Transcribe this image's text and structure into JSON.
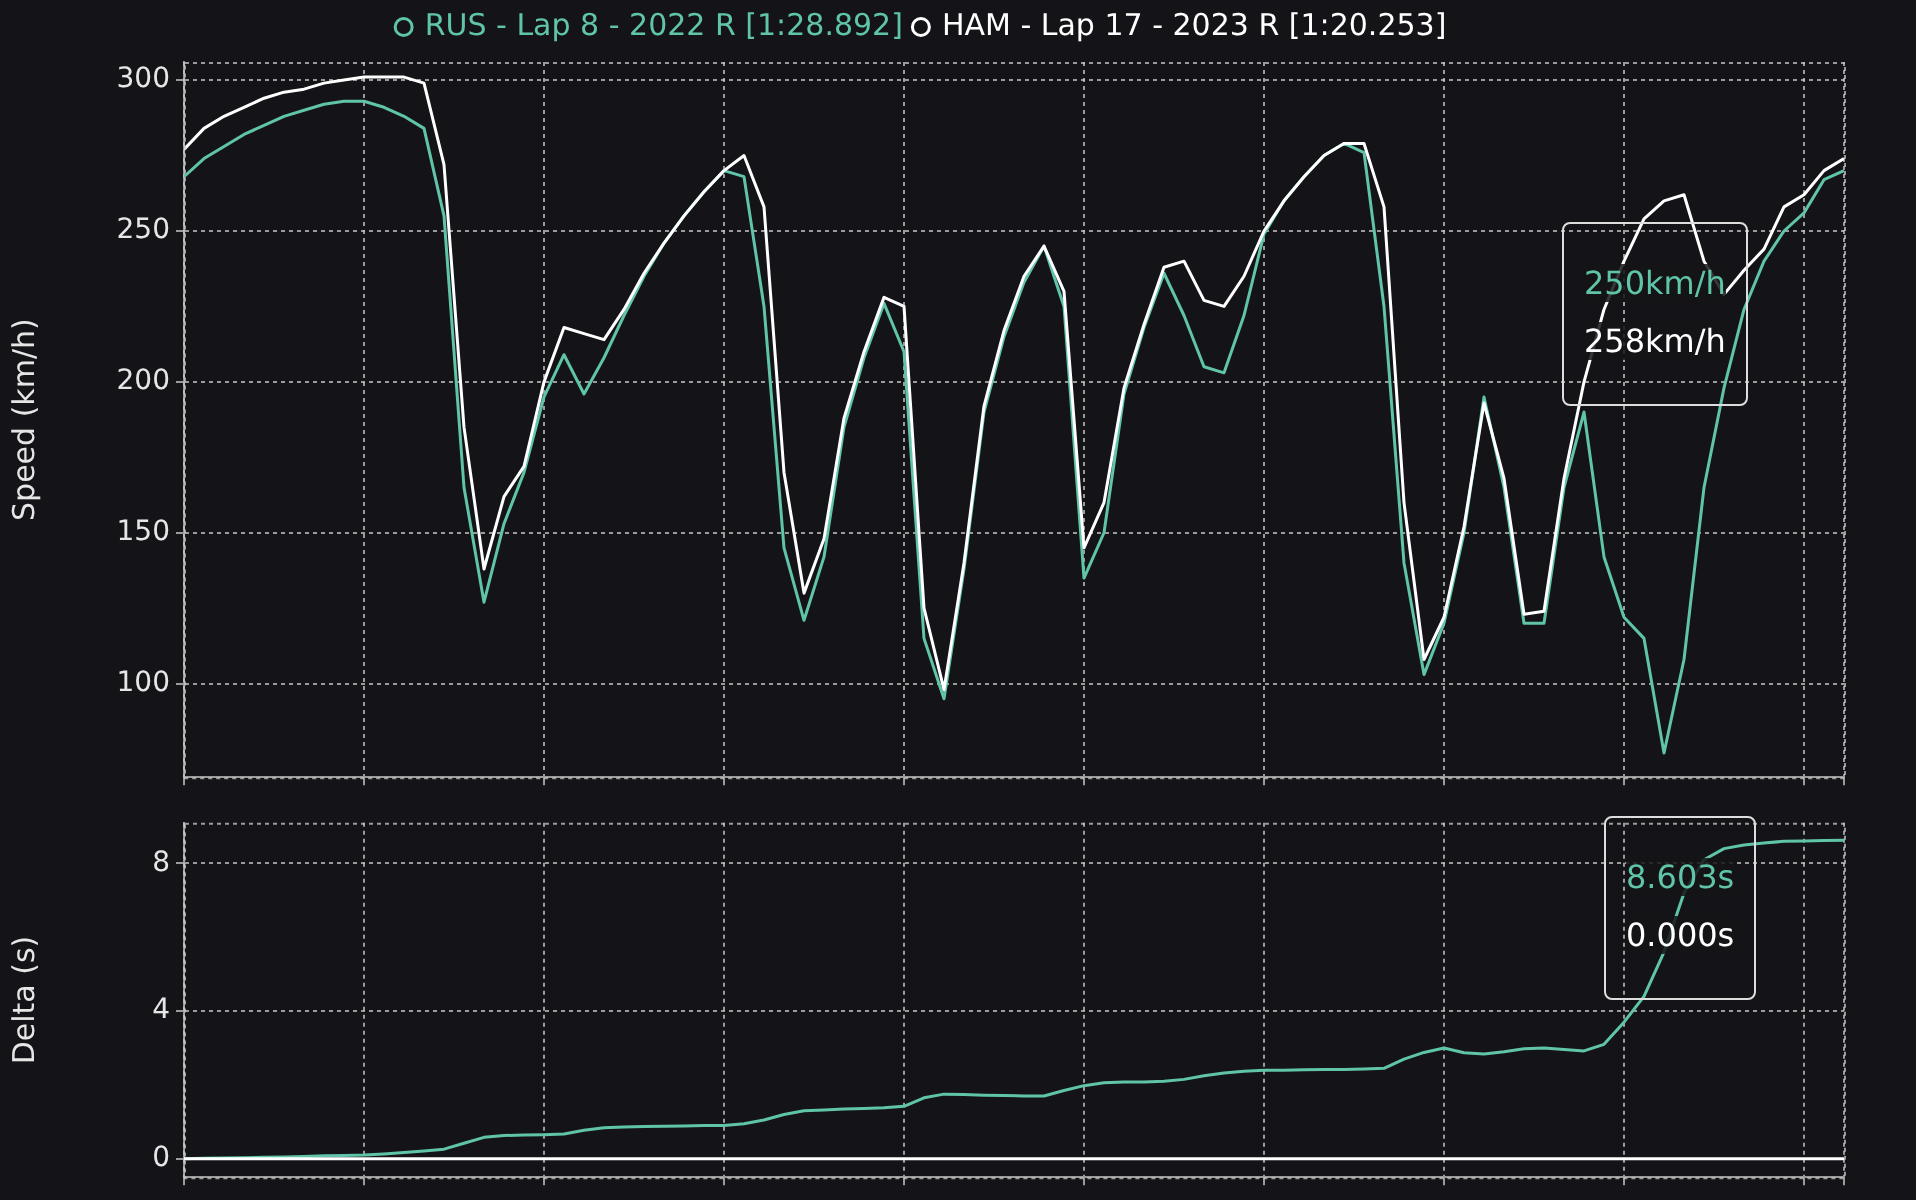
{
  "chart_data": [
    {
      "type": "line",
      "ylabel": "Speed (km/h)",
      "categories": [
        null,
        null,
        null,
        null,
        null,
        null,
        null,
        null,
        null,
        null,
        null,
        null,
        null,
        null,
        null,
        null,
        null,
        null,
        null,
        null,
        null,
        null,
        null,
        null,
        null,
        null,
        null,
        null,
        null,
        null,
        null,
        null,
        null,
        null,
        null,
        null,
        null,
        null,
        null,
        null,
        null,
        null,
        null,
        null,
        null,
        null,
        null,
        null,
        null,
        null,
        null,
        null,
        null,
        null,
        null,
        null,
        null,
        null,
        null,
        null,
        null,
        null,
        null,
        null,
        null,
        null,
        null,
        null,
        null,
        null,
        null,
        null,
        null,
        null,
        null,
        null,
        null,
        null,
        null,
        null,
        null,
        null,
        null,
        null
      ],
      "series": [
        {
          "name": "RUS - Lap 8 - 2022 R [1:28.892]",
          "color": "#5fc4a8",
          "values": [
            268,
            274,
            278,
            282,
            285,
            288,
            290,
            292,
            293,
            293,
            291,
            288,
            284,
            255,
            165,
            127,
            153,
            170,
            195,
            209,
            196,
            208,
            222,
            235,
            246,
            255,
            263,
            270,
            268,
            225,
            145,
            121,
            142,
            185,
            208,
            226,
            210,
            115,
            95,
            138,
            190,
            215,
            233,
            245,
            225,
            135,
            150,
            196,
            218,
            236,
            222,
            205,
            203,
            222,
            249,
            260,
            268,
            275,
            279,
            276,
            225,
            140,
            103,
            120,
            150,
            195,
            165,
            120,
            120,
            165,
            190,
            142,
            122,
            115,
            77,
            108,
            165,
            198,
            224,
            240,
            250,
            256,
            267,
            270
          ]
        },
        {
          "name": "HAM - Lap 17 - 2023 R [1:20.253]",
          "color": "#ffffff",
          "values": [
            277,
            284,
            288,
            291,
            294,
            296,
            297,
            299,
            300,
            301,
            301,
            301,
            299,
            272,
            185,
            138,
            162,
            172,
            200,
            218,
            216,
            214,
            224,
            236,
            246,
            255,
            263,
            270,
            275,
            258,
            170,
            130,
            148,
            188,
            210,
            228,
            225,
            125,
            98,
            140,
            192,
            217,
            235,
            245,
            230,
            145,
            160,
            198,
            219,
            238,
            240,
            227,
            225,
            235,
            250,
            260,
            268,
            275,
            279,
            279,
            258,
            160,
            108,
            122,
            152,
            193,
            168,
            123,
            124,
            168,
            200,
            224,
            240,
            254,
            260,
            262,
            240,
            229,
            237,
            244,
            258,
            262,
            270,
            274
          ]
        }
      ],
      "ylim": [
        69,
        306
      ],
      "yticks": [
        100,
        150,
        200,
        250,
        300
      ],
      "grid": true,
      "legend": "top",
      "tick_labels": "y",
      "line_style": "solid",
      "annotations": [
        "250km/h",
        "258km/h"
      ]
    },
    {
      "type": "line",
      "ylabel": "Delta (s)",
      "categories": [
        null,
        null,
        null,
        null,
        null,
        null,
        null,
        null,
        null,
        null,
        null,
        null,
        null,
        null,
        null,
        null,
        null,
        null,
        null,
        null,
        null,
        null,
        null,
        null,
        null,
        null,
        null,
        null,
        null,
        null,
        null,
        null,
        null,
        null,
        null,
        null,
        null,
        null,
        null,
        null,
        null,
        null,
        null,
        null,
        null,
        null,
        null,
        null,
        null,
        null,
        null,
        null,
        null,
        null,
        null,
        null,
        null,
        null,
        null,
        null,
        null,
        null,
        null,
        null,
        null,
        null,
        null,
        null,
        null,
        null,
        null,
        null,
        null,
        null,
        null,
        null,
        null,
        null,
        null,
        null,
        null,
        null,
        null,
        null
      ],
      "series": [
        {
          "color": "#5fc4a8",
          "values": [
            0,
            0.01,
            0.02,
            0.03,
            0.04,
            0.05,
            0.06,
            0.08,
            0.09,
            0.1,
            0.13,
            0.17,
            0.21,
            0.26,
            0.42,
            0.58,
            0.63,
            0.64,
            0.65,
            0.67,
            0.77,
            0.84,
            0.86,
            0.87,
            0.88,
            0.89,
            0.9,
            0.9,
            0.95,
            1.05,
            1.2,
            1.3,
            1.32,
            1.35,
            1.36,
            1.38,
            1.42,
            1.65,
            1.75,
            1.74,
            1.72,
            1.71,
            1.7,
            1.7,
            1.85,
            1.98,
            2.06,
            2.08,
            2.08,
            2.1,
            2.15,
            2.25,
            2.32,
            2.37,
            2.4,
            2.4,
            2.41,
            2.42,
            2.42,
            2.43,
            2.45,
            2.7,
            2.88,
            3.0,
            2.87,
            2.84,
            2.9,
            2.98,
            3.0,
            2.96,
            2.92,
            3.1,
            3.7,
            4.4,
            5.6,
            7.2,
            8.1,
            8.4,
            8.5,
            8.55,
            8.6,
            8.61,
            8.62,
            8.63
          ]
        },
        {
          "color": "#ffffff",
          "values": [
            0,
            0,
            0,
            0,
            0,
            0,
            0,
            0,
            0,
            0,
            0,
            0,
            0,
            0,
            0,
            0,
            0,
            0,
            0,
            0,
            0,
            0,
            0,
            0,
            0,
            0,
            0,
            0,
            0,
            0,
            0,
            0,
            0,
            0,
            0,
            0,
            0,
            0,
            0,
            0,
            0,
            0,
            0,
            0,
            0,
            0,
            0,
            0,
            0,
            0,
            0,
            0,
            0,
            0,
            0,
            0,
            0,
            0,
            0,
            0,
            0,
            0,
            0,
            0,
            0,
            0,
            0,
            0,
            0,
            0,
            0,
            0,
            0,
            0,
            0,
            0,
            0,
            0,
            0,
            0,
            0,
            0,
            0,
            0
          ]
        }
      ],
      "ylim": [
        -0.5,
        9.1
      ],
      "yticks": [
        0,
        4,
        8
      ],
      "grid": true,
      "tick_labels": "y",
      "line_style": "solid",
      "annotations": [
        "8.603s",
        "0.000s"
      ]
    }
  ]
}
